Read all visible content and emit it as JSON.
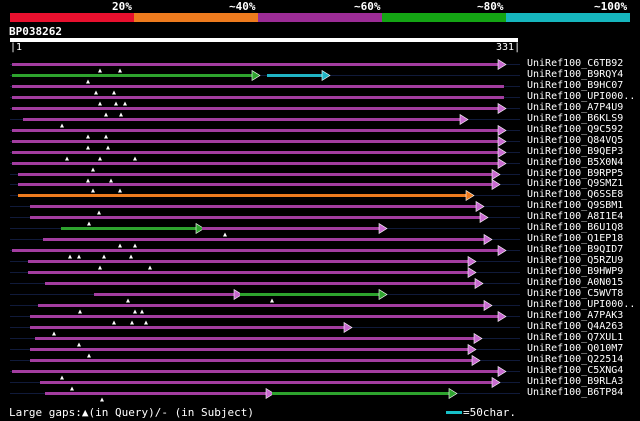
{
  "scale": {
    "percent_labels": [
      "20%",
      "~40%",
      "~60%",
      "~80%",
      "~100%"
    ],
    "band_colors": [
      "#e8102e",
      "#ee7b1e",
      "#9c2c96",
      "#14a514",
      "#16b6be"
    ]
  },
  "query": {
    "name": "BP038262",
    "start": "1",
    "end": "331"
  },
  "hits": [
    {
      "name": "UniRef100_C6TB92",
      "segments": [
        {
          "from": 12,
          "to": 504,
          "color": "#a33da0",
          "arrow": true
        }
      ],
      "marks": [
        100,
        120
      ]
    },
    {
      "name": "UniRef100_B9RQY4",
      "segments": [
        {
          "from": 12,
          "to": 258,
          "color": "#2ea32e",
          "arrow": true
        },
        {
          "from": 267,
          "to": 328,
          "color": "#1fb4c4",
          "arrow": true
        }
      ],
      "marks": [
        88
      ]
    },
    {
      "name": "UniRef100_B9HC07",
      "segments": [
        {
          "from": 12,
          "to": 504,
          "color": "#a33da0",
          "arrow": false
        }
      ],
      "marks": [
        96,
        114
      ]
    },
    {
      "name": "UniRef100_UPI000..",
      "segments": [
        {
          "from": 12,
          "to": 504,
          "color": "#a33da0",
          "arrow": false
        }
      ],
      "marks": [
        100,
        116,
        125
      ]
    },
    {
      "name": "UniRef100_A7P4U9",
      "segments": [
        {
          "from": 12,
          "to": 504,
          "color": "#a33da0",
          "arrow": true
        }
      ],
      "marks": [
        106,
        121
      ]
    },
    {
      "name": "UniRef100_B6KLS9",
      "segments": [
        {
          "from": 23,
          "to": 466,
          "color": "#a33da0",
          "arrow": true
        }
      ],
      "marks": [
        62
      ]
    },
    {
      "name": "UniRef100_Q9C592",
      "segments": [
        {
          "from": 12,
          "to": 504,
          "color": "#a33da0",
          "arrow": true
        }
      ],
      "marks": [
        88,
        106
      ]
    },
    {
      "name": "UniRef100_Q84VQ5",
      "segments": [
        {
          "from": 12,
          "to": 504,
          "color": "#a33da0",
          "arrow": true
        }
      ],
      "marks": [
        88,
        108
      ]
    },
    {
      "name": "UniRef100_B9QEP3",
      "segments": [
        {
          "from": 12,
          "to": 504,
          "color": "#a33da0",
          "arrow": true
        }
      ],
      "marks": [
        67,
        100,
        135
      ]
    },
    {
      "name": "UniRef100_B5X0N4",
      "segments": [
        {
          "from": 12,
          "to": 504,
          "color": "#a33da0",
          "arrow": true
        }
      ],
      "marks": [
        93
      ]
    },
    {
      "name": "UniRef100_B9RPP5",
      "segments": [
        {
          "from": 18,
          "to": 498,
          "color": "#a33da0",
          "arrow": true
        }
      ],
      "marks": [
        88,
        111
      ]
    },
    {
      "name": "UniRef100_Q9SMZ1",
      "segments": [
        {
          "from": 18,
          "to": 498,
          "color": "#a33da0",
          "arrow": true
        }
      ],
      "marks": [
        93,
        120
      ]
    },
    {
      "name": "UniRef100_Q6SSE8",
      "segments": [
        {
          "from": 18,
          "to": 472,
          "color": "#ee7b1e",
          "arrow": true
        }
      ],
      "marks": []
    },
    {
      "name": "UniRef100_Q9SBM1",
      "segments": [
        {
          "from": 30,
          "to": 482,
          "color": "#a33da0",
          "arrow": true
        }
      ],
      "marks": [
        99
      ]
    },
    {
      "name": "UniRef100_A8I1E4",
      "segments": [
        {
          "from": 30,
          "to": 486,
          "color": "#a33da0",
          "arrow": true
        }
      ],
      "marks": [
        89
      ]
    },
    {
      "name": "UniRef100_B6U1Q8",
      "segments": [
        {
          "from": 61,
          "to": 202,
          "color": "#2ea32e",
          "arrow": true
        },
        {
          "from": 202,
          "to": 385,
          "color": "#a33da0",
          "arrow": true
        }
      ],
      "marks": [
        225
      ]
    },
    {
      "name": "UniRef100_Q1EP18",
      "segments": [
        {
          "from": 43,
          "to": 490,
          "color": "#a33da0",
          "arrow": true
        }
      ],
      "marks": [
        120,
        135
      ]
    },
    {
      "name": "UniRef100_B9QID7",
      "segments": [
        {
          "from": 12,
          "to": 504,
          "color": "#a33da0",
          "arrow": true
        }
      ],
      "marks": [
        70,
        79,
        104,
        131
      ]
    },
    {
      "name": "UniRef100_Q5RZU9",
      "segments": [
        {
          "from": 28,
          "to": 474,
          "color": "#a33da0",
          "arrow": true
        }
      ],
      "marks": [
        100,
        150
      ]
    },
    {
      "name": "UniRef100_B9HWP9",
      "segments": [
        {
          "from": 28,
          "to": 474,
          "color": "#a33da0",
          "arrow": true
        }
      ],
      "marks": []
    },
    {
      "name": "UniRef100_A0N015",
      "segments": [
        {
          "from": 45,
          "to": 481,
          "color": "#a33da0",
          "arrow": true
        }
      ],
      "marks": []
    },
    {
      "name": "UniRef100_C5WVT8",
      "segments": [
        {
          "from": 94,
          "to": 240,
          "color": "#a33da0",
          "arrow": true
        },
        {
          "from": 240,
          "to": 385,
          "color": "#2ea32e",
          "arrow": true
        }
      ],
      "marks": [
        128,
        272
      ]
    },
    {
      "name": "UniRef100_UPI000..",
      "segments": [
        {
          "from": 38,
          "to": 490,
          "color": "#a33da0",
          "arrow": true
        }
      ],
      "marks": [
        80,
        135,
        142
      ]
    },
    {
      "name": "UniRef100_A7PAK3",
      "segments": [
        {
          "from": 30,
          "to": 504,
          "color": "#a33da0",
          "arrow": true
        }
      ],
      "marks": [
        114,
        132,
        146
      ]
    },
    {
      "name": "UniRef100_Q4A263",
      "segments": [
        {
          "from": 30,
          "to": 350,
          "color": "#a33da0",
          "arrow": true
        }
      ],
      "marks": [
        54
      ]
    },
    {
      "name": "UniRef100_Q7XUL1",
      "segments": [
        {
          "from": 35,
          "to": 480,
          "color": "#a33da0",
          "arrow": true
        }
      ],
      "marks": [
        79
      ]
    },
    {
      "name": "UniRef100_Q010M7",
      "segments": [
        {
          "from": 30,
          "to": 474,
          "color": "#a33da0",
          "arrow": true
        }
      ],
      "marks": [
        89
      ]
    },
    {
      "name": "UniRef100_Q22514",
      "segments": [
        {
          "from": 30,
          "to": 478,
          "color": "#a33da0",
          "arrow": true
        }
      ],
      "marks": []
    },
    {
      "name": "UniRef100_C5XNG4",
      "segments": [
        {
          "from": 12,
          "to": 504,
          "color": "#a33da0",
          "arrow": true
        }
      ],
      "marks": [
        62
      ]
    },
    {
      "name": "UniRef100_B9RLA3",
      "segments": [
        {
          "from": 40,
          "to": 498,
          "color": "#a33da0",
          "arrow": true
        }
      ],
      "marks": [
        72
      ]
    },
    {
      "name": "UniRef100_B6TP84",
      "segments": [
        {
          "from": 45,
          "to": 272,
          "color": "#a33da0",
          "arrow": true
        },
        {
          "from": 272,
          "to": 455,
          "color": "#2ea32e",
          "arrow": true
        }
      ],
      "marks": [
        102
      ]
    }
  ],
  "footer": {
    "gaps_text": "Large gaps:▲(in Query)/- (in Subject)",
    "legend_color": "#17c0c8",
    "legend_text": "=50char."
  }
}
